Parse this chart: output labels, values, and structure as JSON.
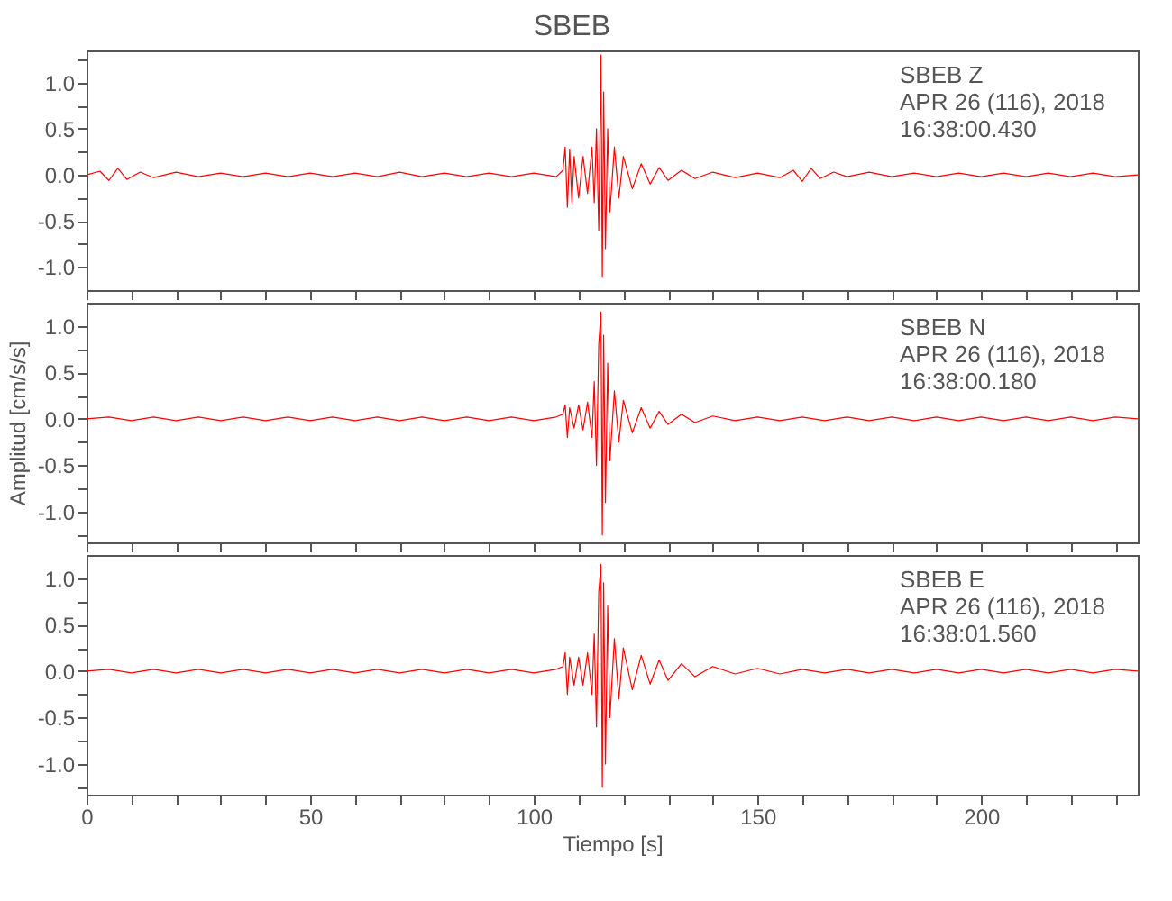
{
  "chart_data": [
    {
      "type": "line",
      "title": "SBEB",
      "annotations": [
        "SBEB   Z",
        "APR 26 (116), 2018",
        "16:38:00.430"
      ],
      "x": [
        0,
        3,
        5,
        7,
        9,
        12,
        15,
        20,
        25,
        30,
        35,
        40,
        45,
        50,
        55,
        60,
        65,
        70,
        75,
        80,
        85,
        90,
        95,
        100,
        105,
        106.5,
        107,
        107.5,
        108,
        108.5,
        109,
        110,
        111,
        112,
        113,
        113.5,
        114,
        114.5,
        115,
        115.3,
        115.6,
        116,
        116.5,
        117,
        118,
        119,
        120,
        122,
        124,
        126,
        128,
        130,
        133,
        136,
        140,
        145,
        150,
        155,
        158,
        160,
        162,
        164,
        167,
        170,
        175,
        180,
        185,
        190,
        195,
        200,
        205,
        210,
        215,
        220,
        225,
        230,
        235
      ],
      "series": [
        {
          "color": "#ff0000",
          "values": [
            0,
            0.04,
            -0.06,
            0.07,
            -0.05,
            0.03,
            -0.03,
            0.03,
            -0.02,
            0.02,
            -0.02,
            0.02,
            -0.02,
            0.02,
            -0.02,
            0.02,
            -0.02,
            0.03,
            -0.02,
            0.02,
            -0.02,
            0.02,
            -0.02,
            0.02,
            -0.02,
            0.05,
            0.3,
            -0.35,
            0.28,
            -0.3,
            0.2,
            -0.25,
            0.2,
            -0.2,
            0.3,
            -0.3,
            0.5,
            -0.6,
            1.3,
            -1.1,
            0.9,
            -0.8,
            0.5,
            -0.4,
            0.3,
            -0.25,
            0.2,
            -0.15,
            0.12,
            -0.1,
            0.08,
            -0.06,
            0.05,
            -0.04,
            0.03,
            -0.03,
            0.02,
            -0.03,
            0.05,
            -0.07,
            0.07,
            -0.04,
            0.03,
            -0.02,
            0.03,
            -0.02,
            0.02,
            -0.02,
            0.02,
            -0.02,
            0.02,
            -0.02,
            0.02,
            -0.02,
            0.02,
            -0.02,
            0
          ]
        }
      ],
      "xlim": [
        0,
        235
      ],
      "xticks": [
        {
          "value": 0,
          "label": null
        },
        {
          "value": 10,
          "label": null
        },
        {
          "value": 20,
          "label": null
        },
        {
          "value": 30,
          "label": null
        },
        {
          "value": 40,
          "label": null
        },
        {
          "value": 50,
          "label": null
        },
        {
          "value": 60,
          "label": null
        },
        {
          "value": 70,
          "label": null
        },
        {
          "value": 80,
          "label": null
        },
        {
          "value": 90,
          "label": null
        },
        {
          "value": 100,
          "label": null
        },
        {
          "value": 110,
          "label": null
        },
        {
          "value": 120,
          "label": null
        },
        {
          "value": 130,
          "label": null
        },
        {
          "value": 140,
          "label": null
        },
        {
          "value": 150,
          "label": null
        },
        {
          "value": 160,
          "label": null
        },
        {
          "value": 170,
          "label": null
        },
        {
          "value": 180,
          "label": null
        },
        {
          "value": 190,
          "label": null
        },
        {
          "value": 200,
          "label": null
        },
        {
          "value": 210,
          "label": null
        },
        {
          "value": 220,
          "label": null
        },
        {
          "value": 230,
          "label": null
        }
      ],
      "ylim": [
        -1.25,
        1.35
      ],
      "yticks": [
        {
          "value": -1,
          "label": "-1.0"
        },
        {
          "value": -0.75,
          "label": null
        },
        {
          "value": -0.5,
          "label": "-0.5"
        },
        {
          "value": -0.25,
          "label": null
        },
        {
          "value": 0,
          "label": "0.0"
        },
        {
          "value": 0.25,
          "label": null
        },
        {
          "value": 0.5,
          "label": "0.5"
        },
        {
          "value": 0.75,
          "label": null
        },
        {
          "value": 1,
          "label": "1.0"
        },
        {
          "value": 1.25,
          "label": null
        }
      ],
      "tick_labels": "y"
    },
    {
      "type": "line",
      "ylabel": "Amplitud [cm/s/s]",
      "annotations": [
        "SBEB   N",
        "APR 26 (116), 2018",
        "16:38:00.180"
      ],
      "x": [
        0,
        5,
        10,
        15,
        20,
        25,
        30,
        35,
        40,
        45,
        50,
        55,
        60,
        65,
        70,
        75,
        80,
        85,
        90,
        95,
        100,
        105,
        106.5,
        107,
        107.5,
        108,
        109,
        110,
        111,
        112,
        113,
        113.5,
        114,
        114.5,
        115,
        115.3,
        115.6,
        116,
        116.5,
        117,
        118,
        119,
        120,
        122,
        124,
        126,
        128,
        130,
        133,
        136,
        140,
        145,
        150,
        155,
        160,
        165,
        170,
        175,
        180,
        185,
        190,
        195,
        200,
        205,
        210,
        215,
        220,
        225,
        230,
        235
      ],
      "series": [
        {
          "color": "#ff0000",
          "values": [
            0,
            0.02,
            -0.02,
            0.02,
            -0.02,
            0.02,
            -0.02,
            0.02,
            -0.02,
            0.02,
            -0.02,
            0.02,
            -0.02,
            0.02,
            -0.02,
            0.02,
            -0.02,
            0.02,
            -0.02,
            0.02,
            -0.02,
            0.02,
            0.05,
            0.15,
            -0.2,
            0.12,
            -0.1,
            0.15,
            -0.12,
            0.18,
            -0.2,
            0.4,
            -0.5,
            0.8,
            1.15,
            -1.25,
            0.9,
            -0.9,
            0.6,
            -0.45,
            0.3,
            -0.25,
            0.2,
            -0.15,
            0.12,
            -0.1,
            0.08,
            -0.06,
            0.05,
            -0.04,
            0.03,
            -0.02,
            0.02,
            -0.02,
            0.02,
            -0.02,
            0.02,
            -0.02,
            0.02,
            -0.02,
            0.02,
            -0.02,
            0.02,
            -0.02,
            0.02,
            -0.02,
            0.02,
            -0.02,
            0.02,
            0
          ]
        }
      ],
      "xlim": [
        0,
        235
      ],
      "xticks": [
        {
          "value": 0,
          "label": null
        },
        {
          "value": 10,
          "label": null
        },
        {
          "value": 20,
          "label": null
        },
        {
          "value": 30,
          "label": null
        },
        {
          "value": 40,
          "label": null
        },
        {
          "value": 50,
          "label": null
        },
        {
          "value": 60,
          "label": null
        },
        {
          "value": 70,
          "label": null
        },
        {
          "value": 80,
          "label": null
        },
        {
          "value": 90,
          "label": null
        },
        {
          "value": 100,
          "label": null
        },
        {
          "value": 110,
          "label": null
        },
        {
          "value": 120,
          "label": null
        },
        {
          "value": 130,
          "label": null
        },
        {
          "value": 140,
          "label": null
        },
        {
          "value": 150,
          "label": null
        },
        {
          "value": 160,
          "label": null
        },
        {
          "value": 170,
          "label": null
        },
        {
          "value": 180,
          "label": null
        },
        {
          "value": 190,
          "label": null
        },
        {
          "value": 200,
          "label": null
        },
        {
          "value": 210,
          "label": null
        },
        {
          "value": 220,
          "label": null
        },
        {
          "value": 230,
          "label": null
        }
      ],
      "ylim": [
        -1.33,
        1.25
      ],
      "yticks": [
        {
          "value": -1.25,
          "label": null
        },
        {
          "value": -1,
          "label": "-1.0"
        },
        {
          "value": -0.75,
          "label": null
        },
        {
          "value": -0.5,
          "label": "-0.5"
        },
        {
          "value": -0.25,
          "label": null
        },
        {
          "value": 0,
          "label": "0.0"
        },
        {
          "value": 0.25,
          "label": null
        },
        {
          "value": 0.5,
          "label": "0.5"
        },
        {
          "value": 0.75,
          "label": null
        },
        {
          "value": 1,
          "label": "1.0"
        }
      ],
      "tick_labels": "y"
    },
    {
      "type": "line",
      "xlabel": "Tiempo [s]",
      "annotations": [
        "SBEB   E",
        "APR 26 (116), 2018",
        "16:38:01.560"
      ],
      "x": [
        0,
        5,
        10,
        15,
        20,
        25,
        30,
        35,
        40,
        45,
        50,
        55,
        60,
        65,
        70,
        75,
        80,
        85,
        90,
        95,
        100,
        105,
        106.5,
        107,
        107.5,
        108,
        109,
        110,
        111,
        112,
        113,
        113.5,
        114,
        114.5,
        115,
        115.3,
        115.6,
        116,
        116.5,
        117,
        118,
        119,
        120,
        122,
        124,
        126,
        128,
        130,
        133,
        136,
        140,
        145,
        150,
        155,
        160,
        165,
        170,
        175,
        180,
        185,
        190,
        195,
        200,
        205,
        210,
        215,
        220,
        225,
        230,
        235
      ],
      "series": [
        {
          "color": "#ff0000",
          "values": [
            0,
            0.02,
            -0.02,
            0.02,
            -0.02,
            0.02,
            -0.02,
            0.02,
            -0.02,
            0.02,
            -0.02,
            0.02,
            -0.02,
            0.02,
            -0.02,
            0.02,
            -0.02,
            0.02,
            -0.02,
            0.02,
            -0.02,
            0.02,
            0.05,
            0.2,
            -0.25,
            0.15,
            -0.15,
            0.15,
            -0.15,
            0.2,
            -0.25,
            0.4,
            -0.6,
            0.85,
            1.15,
            -1.25,
            0.95,
            -1.0,
            0.7,
            -0.5,
            0.35,
            -0.3,
            0.25,
            -0.2,
            0.17,
            -0.14,
            0.12,
            -0.1,
            0.08,
            -0.06,
            0.05,
            -0.03,
            0.03,
            -0.03,
            0.02,
            -0.02,
            0.02,
            -0.02,
            0.02,
            -0.02,
            0.02,
            -0.02,
            0.02,
            -0.02,
            0.02,
            -0.02,
            0.02,
            -0.02,
            0.02,
            0
          ]
        }
      ],
      "xlim": [
        0,
        235
      ],
      "xticks": [
        0,
        {
          "value": 10,
          "label": null
        },
        {
          "value": 20,
          "label": null
        },
        {
          "value": 30,
          "label": null
        },
        {
          "value": 40,
          "label": null
        },
        50,
        {
          "value": 60,
          "label": null
        },
        {
          "value": 70,
          "label": null
        },
        {
          "value": 80,
          "label": null
        },
        {
          "value": 90,
          "label": null
        },
        100,
        {
          "value": 110,
          "label": null
        },
        {
          "value": 120,
          "label": null
        },
        {
          "value": 130,
          "label": null
        },
        {
          "value": 140,
          "label": null
        },
        150,
        {
          "value": 160,
          "label": null
        },
        {
          "value": 170,
          "label": null
        },
        {
          "value": 180,
          "label": null
        },
        {
          "value": 190,
          "label": null
        },
        200,
        {
          "value": 210,
          "label": null
        },
        {
          "value": 220,
          "label": null
        },
        {
          "value": 230,
          "label": null
        }
      ],
      "ylim": [
        -1.33,
        1.25
      ],
      "yticks": [
        {
          "value": -1.25,
          "label": null
        },
        {
          "value": -1,
          "label": "-1.0"
        },
        {
          "value": -0.75,
          "label": null
        },
        {
          "value": -0.5,
          "label": "-0.5"
        },
        {
          "value": -0.25,
          "label": null
        },
        {
          "value": 0,
          "label": "0.0"
        },
        {
          "value": 0.25,
          "label": null
        },
        {
          "value": 0.5,
          "label": "0.5"
        },
        {
          "value": 0.75,
          "label": null
        },
        {
          "value": 1,
          "label": "1.0"
        }
      ]
    }
  ]
}
